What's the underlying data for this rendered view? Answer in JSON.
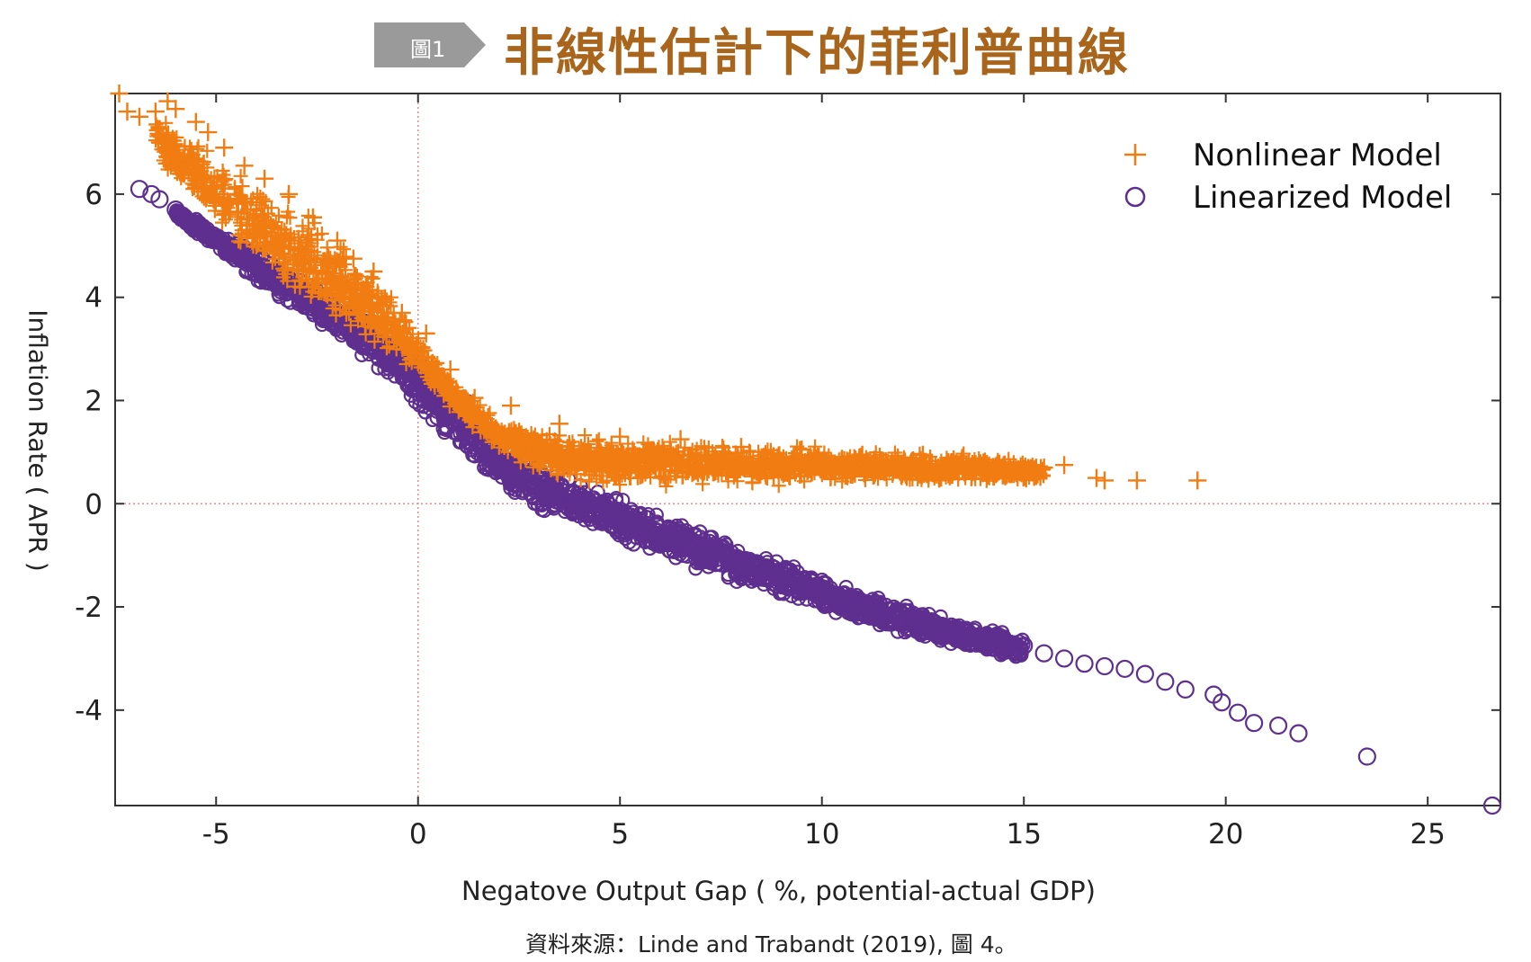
{
  "header": {
    "badge": "圖1",
    "title": "非線性估計下的菲利普曲線"
  },
  "source_note": "資料來源：Linde and Trabandt (2019), 圖 4。",
  "colors": {
    "nonlinear": "#f07c12",
    "linearized": "#5e2f8e",
    "badge_bg": "#9a9a9a",
    "title": "#a8651b"
  },
  "chart_data": {
    "type": "scatter",
    "title": "",
    "xlabel": "Negatove Output Gap ( %, potential-actual GDP)",
    "ylabel": "Inflation Rate ( APR )",
    "xlim": [
      -7.5,
      26.8
    ],
    "ylim": [
      -5.85,
      7.95
    ],
    "xticks": [
      -5,
      0,
      5,
      10,
      15,
      20,
      25
    ],
    "yticks": [
      -4,
      -2,
      0,
      2,
      4,
      6
    ],
    "reference_lines": {
      "x": 0,
      "y": 0
    },
    "grid": false,
    "legend": "top-right",
    "series": [
      {
        "name": "Nonlinear Model",
        "marker": "plus",
        "color": "#f07c12",
        "points": [
          [
            -7.4,
            7.95
          ],
          [
            -7.2,
            7.6
          ],
          [
            -6.9,
            7.5
          ],
          [
            -6.5,
            7.6
          ],
          [
            -6.2,
            7.8
          ],
          [
            -6.0,
            7.65
          ],
          [
            -5.5,
            7.4
          ],
          [
            -5.2,
            7.2
          ],
          [
            -4.8,
            6.9
          ],
          [
            -4.3,
            6.55
          ],
          [
            -3.8,
            6.3
          ],
          [
            -3.2,
            6.0
          ],
          [
            -2.6,
            5.55
          ],
          [
            -2.0,
            5.1
          ],
          [
            -1.6,
            4.75
          ],
          [
            -1.1,
            4.5
          ],
          [
            -0.4,
            3.7
          ],
          [
            0.2,
            3.3
          ],
          [
            0.8,
            2.6
          ],
          [
            1.4,
            2.05
          ],
          [
            2.3,
            1.9
          ],
          [
            3.5,
            1.55
          ],
          [
            5.0,
            1.3
          ],
          [
            6.5,
            1.25
          ],
          [
            8.0,
            1.1
          ],
          [
            9.5,
            1.05
          ],
          [
            11.0,
            0.95
          ],
          [
            12.5,
            0.95
          ],
          [
            13.2,
            0.8
          ],
          [
            14.0,
            0.8
          ],
          [
            14.5,
            0.75
          ],
          [
            15.0,
            0.6
          ],
          [
            15.5,
            0.7
          ],
          [
            16.0,
            0.75
          ],
          [
            16.8,
            0.5
          ],
          [
            17.0,
            0.45
          ],
          [
            17.8,
            0.45
          ],
          [
            19.3,
            0.45
          ]
        ],
        "band": {
          "x": [
            -6.5,
            -6.0,
            -5.0,
            -4.0,
            -3.0,
            -2.0,
            -1.0,
            0.0,
            1.0,
            2.0,
            3.0,
            4.0,
            5.0,
            6.0,
            8.0,
            10.0,
            12.0,
            14.0,
            15.5
          ],
          "y_low": [
            6.7,
            6.2,
            5.3,
            4.5,
            3.8,
            3.3,
            2.9,
            2.4,
            1.65,
            1.0,
            0.55,
            0.35,
            0.3,
            0.3,
            0.3,
            0.35,
            0.35,
            0.35,
            0.4
          ],
          "y_high": [
            7.6,
            7.3,
            6.8,
            6.3,
            5.9,
            5.3,
            4.5,
            3.4,
            2.3,
            1.7,
            1.5,
            1.35,
            1.3,
            1.3,
            1.2,
            1.15,
            1.05,
            1.0,
            0.8
          ]
        }
      },
      {
        "name": "Linearized Model",
        "marker": "circle",
        "color": "#5e2f8e",
        "points": [
          [
            -6.9,
            6.1
          ],
          [
            -6.6,
            6.0
          ],
          [
            -6.4,
            5.9
          ],
          [
            -6.0,
            5.7
          ],
          [
            -5.5,
            5.4
          ],
          [
            -5.0,
            5.1
          ],
          [
            -4.0,
            4.6
          ],
          [
            -3.0,
            4.15
          ],
          [
            -2.0,
            3.6
          ],
          [
            -1.0,
            3.1
          ],
          [
            0.0,
            2.5
          ],
          [
            1.0,
            1.6
          ],
          [
            2.0,
            0.85
          ],
          [
            3.0,
            0.3
          ],
          [
            4.0,
            0.0
          ],
          [
            5.0,
            -0.3
          ],
          [
            6.0,
            -0.7
          ],
          [
            7.0,
            -1.0
          ],
          [
            8.0,
            -1.25
          ],
          [
            9.0,
            -1.5
          ],
          [
            10.0,
            -1.8
          ],
          [
            11.0,
            -2.1
          ],
          [
            12.0,
            -2.3
          ],
          [
            13.0,
            -2.45
          ],
          [
            14.0,
            -2.65
          ],
          [
            15.0,
            -2.75
          ],
          [
            15.5,
            -2.9
          ],
          [
            16.0,
            -3.0
          ],
          [
            16.5,
            -3.1
          ],
          [
            17.0,
            -3.15
          ],
          [
            17.5,
            -3.2
          ],
          [
            18.0,
            -3.3
          ],
          [
            18.5,
            -3.45
          ],
          [
            19.0,
            -3.6
          ],
          [
            19.7,
            -3.7
          ],
          [
            19.9,
            -3.85
          ],
          [
            20.3,
            -4.05
          ],
          [
            20.7,
            -4.25
          ],
          [
            21.3,
            -4.3
          ],
          [
            21.8,
            -4.45
          ],
          [
            23.5,
            -4.9
          ],
          [
            26.6,
            -5.85
          ]
        ],
        "band": {
          "x": [
            -6.0,
            -5.0,
            -4.0,
            -3.0,
            -2.0,
            -1.0,
            0.0,
            1.0,
            2.0,
            3.0,
            4.0,
            5.0,
            6.0,
            7.0,
            8.0,
            9.0,
            10.0,
            11.0,
            12.0,
            13.0,
            14.0,
            15.0
          ],
          "y_low": [
            5.55,
            4.85,
            4.25,
            3.7,
            3.15,
            2.55,
            1.75,
            0.9,
            0.15,
            -0.25,
            -0.45,
            -0.75,
            -1.05,
            -1.35,
            -1.6,
            -1.85,
            -2.1,
            -2.35,
            -2.55,
            -2.75,
            -2.95,
            -3.1
          ],
          "y_high": [
            5.75,
            5.35,
            4.95,
            4.5,
            4.0,
            3.5,
            2.95,
            2.25,
            1.5,
            0.8,
            0.45,
            0.15,
            -0.15,
            -0.45,
            -0.75,
            -1.05,
            -1.35,
            -1.65,
            -1.9,
            -2.15,
            -2.35,
            -2.55
          ]
        }
      }
    ]
  }
}
